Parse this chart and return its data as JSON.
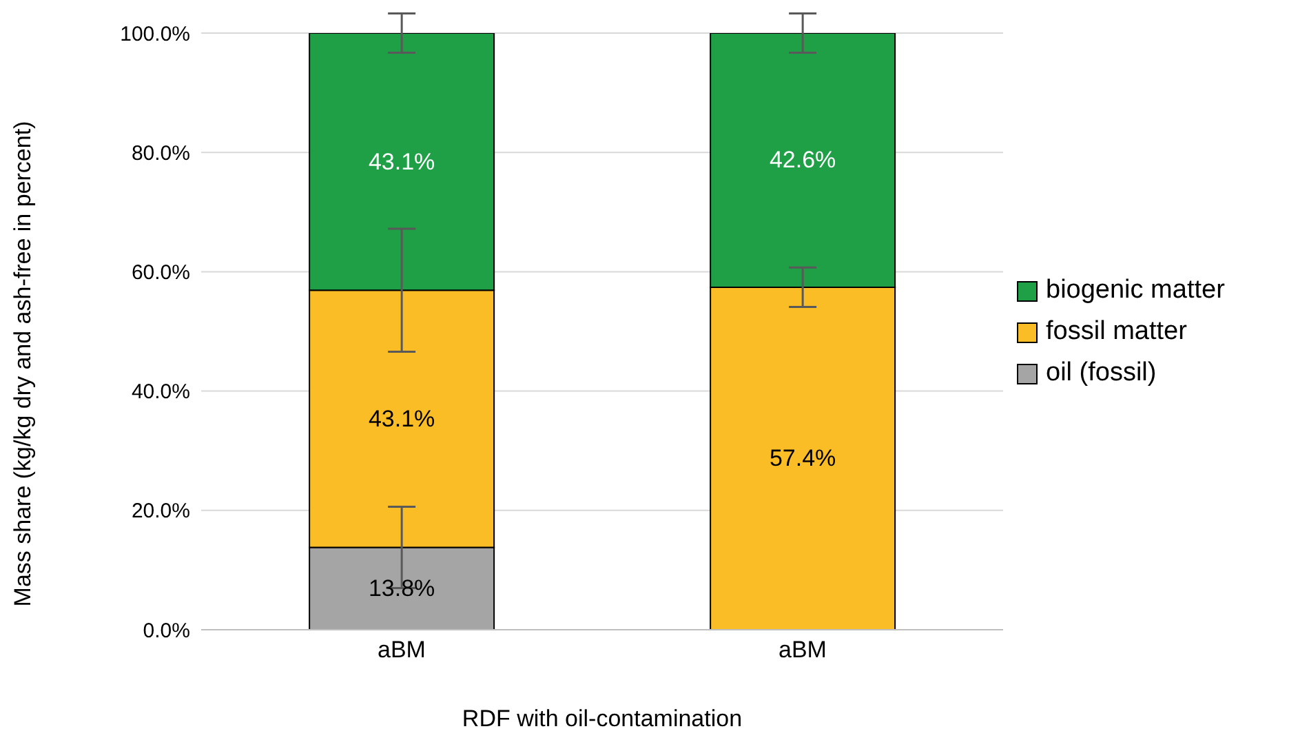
{
  "chart_data": {
    "type": "bar",
    "stacked": true,
    "categories": [
      "aBM",
      "aBM"
    ],
    "xlabel": "RDF with oil-contamination",
    "ylabel": "Mass share  (kg/kg dry and ash-free in percent)",
    "series": [
      {
        "name": "oil (fossil)",
        "color": "#a5a5a5",
        "values": [
          13.8,
          0
        ],
        "errors": [
          6.8,
          null
        ],
        "value_labels": [
          "13.8%",
          null
        ]
      },
      {
        "name": "fossil matter",
        "color": "#fbbd25",
        "values": [
          43.1,
          57.4
        ],
        "errors": [
          10.3,
          3.3
        ],
        "value_labels": [
          "43.1%",
          "57.4%"
        ]
      },
      {
        "name": "biogenic matter",
        "color": "#1fa047",
        "values": [
          43.1,
          42.6
        ],
        "errors": [
          3.3,
          3.3
        ],
        "value_labels": [
          "43.1%",
          "42.6%"
        ]
      }
    ],
    "ylim": [
      0,
      100
    ],
    "yticks": [
      {
        "value": 0,
        "label": "0.0%"
      },
      {
        "value": 20,
        "label": "20.0%"
      },
      {
        "value": 40,
        "label": "40.0%"
      },
      {
        "value": 60,
        "label": "60.0%"
      },
      {
        "value": 80,
        "label": "80.0%"
      },
      {
        "value": 100,
        "label": "100.0%"
      }
    ],
    "grid": "y",
    "legend": "right"
  }
}
